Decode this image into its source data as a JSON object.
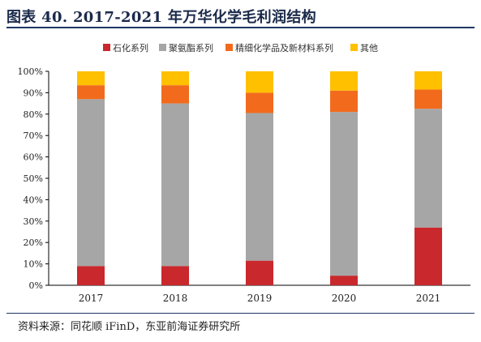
{
  "title": "图表 40. 2017-2021 年万华化学毛利润结构",
  "source": "资料来源：同花顺 iFinD，东亚前海证券研究所",
  "chart_data": {
    "type": "bar",
    "stacked": true,
    "categories": [
      "2017",
      "2018",
      "2019",
      "2020",
      "2021"
    ],
    "series": [
      {
        "name": "石化系列",
        "color": "#c9282d",
        "values": [
          9,
          9,
          11.5,
          4.5,
          27
        ]
      },
      {
        "name": "聚氨酯系列",
        "color": "#a6a6a6",
        "values": [
          78,
          76,
          69,
          76.5,
          55.5
        ]
      },
      {
        "name": "精细化学品及新材料系列",
        "color": "#f26b1d",
        "values": [
          6.5,
          8.5,
          9.5,
          10,
          9
        ]
      },
      {
        "name": "其他",
        "color": "#ffc000",
        "values": [
          6.5,
          6.5,
          10,
          9,
          8.5
        ]
      }
    ],
    "yticks": [
      "0%",
      "10%",
      "20%",
      "30%",
      "40%",
      "50%",
      "60%",
      "70%",
      "80%",
      "90%",
      "100%"
    ],
    "ylim": [
      0,
      100
    ],
    "legend": "top",
    "grid": false
  }
}
